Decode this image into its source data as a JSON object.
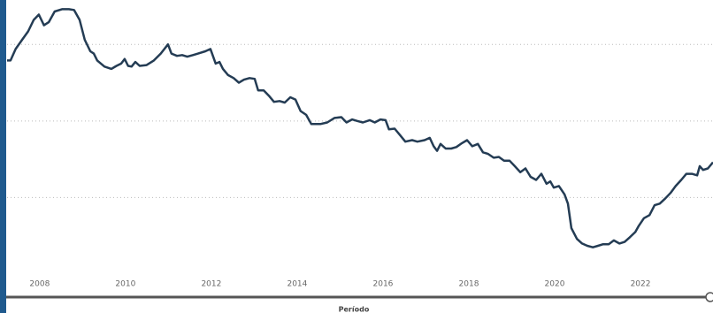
{
  "chart_data": {
    "type": "line",
    "x_label": "Período",
    "xlim": [
      2007.24,
      2023.69
    ],
    "xticks": [
      2008,
      2010,
      2012,
      2014,
      2016,
      2018,
      2020,
      2022
    ],
    "ylim": [
      0,
      3.58
    ],
    "ygrid": [
      1,
      2,
      3
    ],
    "grid": true,
    "series": [
      {
        "color": "#243c54",
        "x": [
          2007.24,
          2007.32,
          2007.44,
          2007.59,
          2007.73,
          2007.86,
          2007.98,
          2008.1,
          2008.21,
          2008.35,
          2008.52,
          2008.68,
          2008.8,
          2008.93,
          2009.05,
          2009.18,
          2009.26,
          2009.34,
          2009.51,
          2009.67,
          2009.79,
          2009.9,
          2009.98,
          2010.06,
          2010.14,
          2010.23,
          2010.33,
          2010.49,
          2010.66,
          2010.82,
          2010.99,
          2011.07,
          2011.2,
          2011.32,
          2011.44,
          2011.57,
          2011.69,
          2011.86,
          2011.98,
          2012.1,
          2012.19,
          2012.27,
          2012.39,
          2012.52,
          2012.64,
          2012.76,
          2012.89,
          2013.01,
          2013.09,
          2013.22,
          2013.34,
          2013.46,
          2013.59,
          2013.71,
          2013.84,
          2013.96,
          2014.08,
          2014.21,
          2014.33,
          2014.54,
          2014.7,
          2014.87,
          2015.03,
          2015.15,
          2015.28,
          2015.4,
          2015.53,
          2015.69,
          2015.81,
          2015.94,
          2016.06,
          2016.14,
          2016.27,
          2016.39,
          2016.52,
          2016.68,
          2016.8,
          2016.97,
          2017.09,
          2017.18,
          2017.26,
          2017.34,
          2017.46,
          2017.59,
          2017.71,
          2017.84,
          2017.96,
          2018.08,
          2018.21,
          2018.33,
          2018.45,
          2018.58,
          2018.7,
          2018.82,
          2018.95,
          2019.07,
          2019.2,
          2019.32,
          2019.44,
          2019.57,
          2019.69,
          2019.81,
          2019.9,
          2019.98,
          2020.1,
          2020.23,
          2020.31,
          2020.39,
          2020.52,
          2020.64,
          2020.76,
          2020.89,
          2021.01,
          2021.13,
          2021.26,
          2021.38,
          2021.51,
          2021.63,
          2021.75,
          2021.88,
          2021.96,
          2022.08,
          2022.21,
          2022.33,
          2022.45,
          2022.58,
          2022.7,
          2022.82,
          2022.95,
          2023.07,
          2023.2,
          2023.32,
          2023.38,
          2023.46,
          2023.57,
          2023.69
        ],
        "values": [
          2.79,
          2.79,
          2.94,
          3.06,
          3.17,
          3.32,
          3.39,
          3.25,
          3.29,
          3.43,
          3.46,
          3.46,
          3.45,
          3.32,
          3.06,
          2.91,
          2.88,
          2.79,
          2.71,
          2.68,
          2.72,
          2.75,
          2.81,
          2.72,
          2.71,
          2.77,
          2.72,
          2.73,
          2.79,
          2.88,
          3.0,
          2.88,
          2.85,
          2.86,
          2.84,
          2.86,
          2.88,
          2.91,
          2.94,
          2.75,
          2.77,
          2.68,
          2.6,
          2.56,
          2.5,
          2.54,
          2.56,
          2.55,
          2.4,
          2.4,
          2.33,
          2.25,
          2.26,
          2.24,
          2.31,
          2.28,
          2.13,
          2.08,
          1.96,
          1.96,
          1.98,
          2.04,
          2.05,
          1.98,
          2.02,
          2.0,
          1.98,
          2.01,
          1.98,
          2.02,
          2.01,
          1.89,
          1.9,
          1.82,
          1.73,
          1.75,
          1.73,
          1.75,
          1.78,
          1.67,
          1.61,
          1.7,
          1.64,
          1.64,
          1.66,
          1.71,
          1.75,
          1.67,
          1.7,
          1.59,
          1.57,
          1.52,
          1.53,
          1.48,
          1.48,
          1.41,
          1.33,
          1.38,
          1.27,
          1.23,
          1.31,
          1.18,
          1.21,
          1.13,
          1.15,
          1.04,
          0.92,
          0.6,
          0.46,
          0.4,
          0.37,
          0.35,
          0.37,
          0.39,
          0.39,
          0.44,
          0.4,
          0.42,
          0.48,
          0.55,
          0.63,
          0.73,
          0.77,
          0.9,
          0.92,
          0.99,
          1.06,
          1.15,
          1.23,
          1.31,
          1.31,
          1.29,
          1.41,
          1.36,
          1.38,
          1.46
        ]
      }
    ]
  }
}
